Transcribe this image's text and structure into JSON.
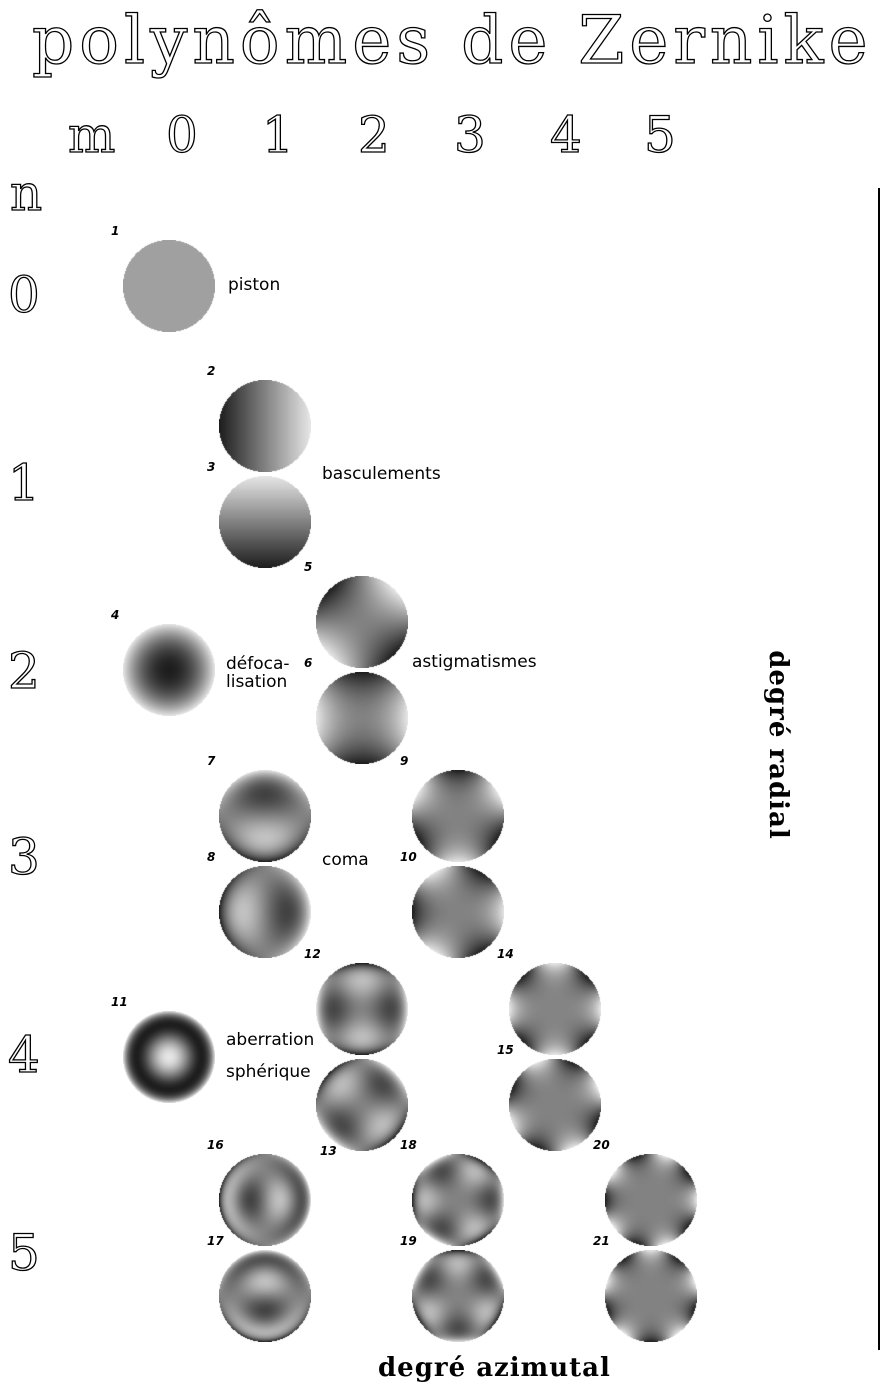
{
  "title": "polynômes de Zernike",
  "m_header": "m",
  "n_header": "n",
  "m_values": [
    "0",
    "1",
    "2",
    "3",
    "4",
    "5"
  ],
  "n_values": [
    "0",
    "1",
    "2",
    "3",
    "4",
    "5"
  ],
  "x_axis_label": "degré azimutal",
  "y_axis_label": "degré radial",
  "annotations": {
    "piston": "piston",
    "basculements": "basculements",
    "defocalisation_1": "défoca-",
    "defocalisation_2": "lisation",
    "astigmatismes": "astigmatismes",
    "coma": "coma",
    "aberration_1": "aberration",
    "aberration_2": "sphérique"
  },
  "modes": [
    {
      "j": "1",
      "n": 0,
      "m": 0,
      "kind": "none"
    },
    {
      "j": "2",
      "n": 1,
      "m": 1,
      "kind": "cos"
    },
    {
      "j": "3",
      "n": 1,
      "m": 1,
      "kind": "sin"
    },
    {
      "j": "4",
      "n": 2,
      "m": 0,
      "kind": "none"
    },
    {
      "j": "5",
      "n": 2,
      "m": 2,
      "kind": "sin"
    },
    {
      "j": "6",
      "n": 2,
      "m": 2,
      "kind": "cos"
    },
    {
      "j": "7",
      "n": 3,
      "m": 1,
      "kind": "sin"
    },
    {
      "j": "8",
      "n": 3,
      "m": 1,
      "kind": "cos"
    },
    {
      "j": "9",
      "n": 3,
      "m": 3,
      "kind": "sin"
    },
    {
      "j": "10",
      "n": 3,
      "m": 3,
      "kind": "cos"
    },
    {
      "j": "11",
      "n": 4,
      "m": 0,
      "kind": "none"
    },
    {
      "j": "12",
      "n": 4,
      "m": 2,
      "kind": "cos"
    },
    {
      "j": "13",
      "n": 4,
      "m": 2,
      "kind": "sin"
    },
    {
      "j": "14",
      "n": 4,
      "m": 4,
      "kind": "cos"
    },
    {
      "j": "15",
      "n": 4,
      "m": 4,
      "kind": "sin"
    },
    {
      "j": "16",
      "n": 5,
      "m": 1,
      "kind": "cos"
    },
    {
      "j": "17",
      "n": 5,
      "m": 1,
      "kind": "sin"
    },
    {
      "j": "18",
      "n": 5,
      "m": 3,
      "kind": "cos"
    },
    {
      "j": "19",
      "n": 5,
      "m": 3,
      "kind": "sin"
    },
    {
      "j": "20",
      "n": 5,
      "m": 5,
      "kind": "cos"
    },
    {
      "j": "21",
      "n": 5,
      "m": 5,
      "kind": "sin"
    }
  ]
}
